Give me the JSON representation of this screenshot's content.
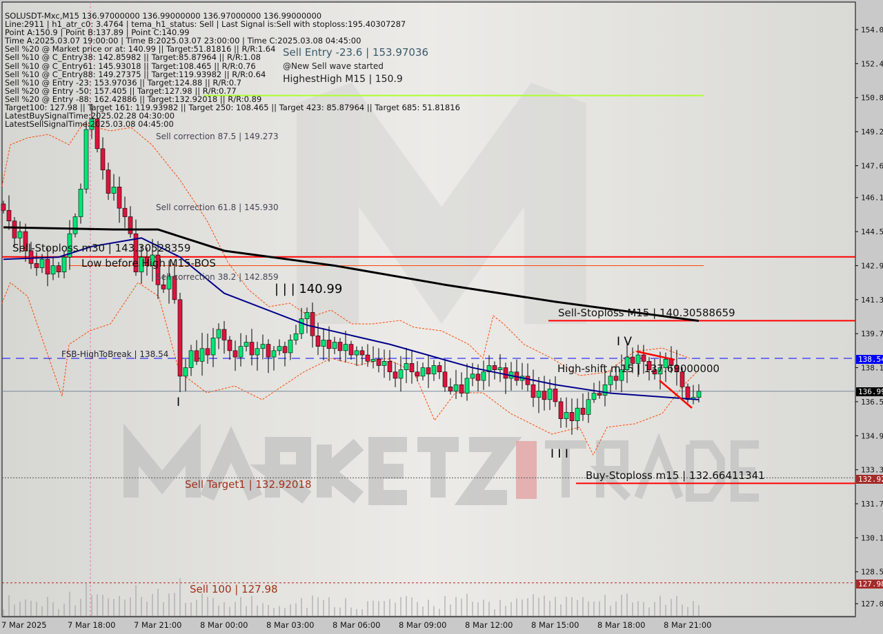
{
  "header": {
    "title_line": "SOLUSDT-Mxc,M15  136.97000000 136.99000000 136.97000000 136.99000000",
    "info_lines": [
      "Line:2911 | h1_atr_c0: 3.4764 | tema_h1_status: Sell | Last Signal is:Sell with stoploss:195.40307287",
      "Point A:150.9 | Point B:137.89 | Point C:140.99",
      "Time A:2025.03.07 19:00:00 | Time B:2025.03.07 23:00:00 | Time C:2025.03.08 04:45:00",
      "Sell %20 @ Market price or at: 140.99 || Target:51.81816 || R/R:1.64",
      "Sell %10 @ C_Entry38: 142.85982 || Target:85.87964 || R/R:1.08",
      "Sell %10 @ C_Entry61: 145.93018 || Target:108.465 || R/R:0.76",
      "Sell %10 @ C_Entry88: 149.27375 || Target:119.93982 || R/R:0.64",
      "Sell %10 @ Entry -23: 153.97036 || Target:124.88 || R/R:0.7",
      "Sell %20 @ Entry -50: 157.405 || Target:127.98 || R/R:0.77",
      "Sell %20 @ Entry -88: 162.42886 || Target:132.92018 || R/R:0.89",
      "Target100: 127.98 || Target 161: 119.93982 || Target 250: 108.465 || Target 423: 85.87964 || Target 685: 51.81816",
      "LatestBuySignalTime:2025.02.28 04:30:00",
      "LatestSellSignalTime:2025.03.08 04:45:00"
    ]
  },
  "annotations": {
    "sell_entry_23": "Sell Entry -23.6 | 153.97036",
    "new_sell_wave": "@New Sell wave started",
    "highest_high": "HighestHigh   M15 | 150.9",
    "sell_corr_875": "Sell correction 87.5 | 149.273",
    "sell_corr_618": "Sell correction 61.8 | 145.930",
    "sell_corr_382": "Sell correction 38.2 | 142.859",
    "sell_stoploss_m30": "Sell-Stoploss m30 | 143.30528359",
    "low_before_high": "Low before High   M15-BOS",
    "point_c": "| | | 140.99",
    "fsb_high": "FSB-HighToBreak | 138.54",
    "wave_i": "I",
    "wave_iii": "I I I",
    "wave_iv": "I V",
    "sell_stoploss_m15": "Sell-Stoploss M15 | 140.30588659",
    "high_shift": "High-shift m15 | 137.69000000",
    "buy_stoploss": "Buy-Stoploss m15 | 132.66411341",
    "sell_target1": "Sell Target1 | 132.92018",
    "sell_100": "Sell 100 | 127.98"
  },
  "watermark": "MARKETZ TRADE",
  "price_badges": [
    {
      "value": "138.54",
      "color": "#0000ff",
      "text_color": "#ffffff"
    },
    {
      "value": "136.99",
      "color": "#000000",
      "text_color": "#ffffff"
    },
    {
      "value": "132.92",
      "color": "#a52a2a",
      "text_color": "#ffffff"
    },
    {
      "value": "127.98",
      "color": "#a52a2a",
      "text_color": "#ffffff"
    }
  ],
  "chart_data": {
    "type": "candlestick",
    "symbol": "SOLUSDT-Mxc",
    "timeframe": "M15",
    "start_time": "2025.03.07 14:00",
    "ylim": [
      127.0,
      154.0
    ],
    "y_ticks": [
      "154.0",
      "152.4",
      "150.8",
      "149.2",
      "147.6",
      "146.1",
      "144.5",
      "142.9",
      "141.3",
      "139.7",
      "138.1",
      "136.5",
      "134.9",
      "133.3",
      "131.7",
      "130.1",
      "128.5",
      "127.0"
    ],
    "x_ticks": [
      "7 Mar 2025",
      "7 Mar 18:00",
      "7 Mar 21:00",
      "8 Mar 00:00",
      "8 Mar 03:00",
      "8 Mar 06:00",
      "8 Mar 09:00",
      "8 Mar 12:00",
      "8 Mar 15:00",
      "8 Mar 18:00",
      "8 Mar 21:00"
    ],
    "closes": [
      145.5,
      145.0,
      144.2,
      144.5,
      143.6,
      143.0,
      142.8,
      143.2,
      142.5,
      142.9,
      142.6,
      143.3,
      144.4,
      145.2,
      146.5,
      149.3,
      149.8,
      148.4,
      147.4,
      146.3,
      146.6,
      145.6,
      145.2,
      144.4,
      142.6,
      143.3,
      142.9,
      143.4,
      142.0,
      141.8,
      142.4,
      141.3,
      137.7,
      138.1,
      138.9,
      138.4,
      139.0,
      138.7,
      139.5,
      139.9,
      139.4,
      138.9,
      138.6,
      139.1,
      139.3,
      138.7,
      139.0,
      139.2,
      138.6,
      138.9,
      139.1,
      138.8,
      139.4,
      139.7,
      140.4,
      140.7,
      139.6,
      139.1,
      139.4,
      139.0,
      139.3,
      138.9,
      139.2,
      138.7,
      138.9,
      138.7,
      138.4,
      138.5,
      138.2,
      138.4,
      137.9,
      137.6,
      138.0,
      138.3,
      137.9,
      137.7,
      138.1,
      137.8,
      138.2,
      137.9,
      137.2,
      137.0,
      137.3,
      136.9,
      137.6,
      137.8,
      137.5,
      137.9,
      138.2,
      138.0,
      138.1,
      137.6,
      137.9,
      137.5,
      137.7,
      137.3,
      136.7,
      137.0,
      136.6,
      137.1,
      136.5,
      135.7,
      136.0,
      135.6,
      136.2,
      135.9,
      136.6,
      136.9,
      136.8,
      137.3,
      137.7,
      137.5,
      138.0,
      138.6,
      138.3,
      138.7,
      138.4,
      138.0,
      137.8,
      138.1,
      138.5,
      138.2,
      137.9,
      137.2,
      136.6,
      136.7,
      136.99
    ],
    "ma_slow": [
      [
        "2025.03.07 14:00",
        144.7
      ],
      [
        "2025.03.07 19:00",
        144.6
      ],
      [
        "2025.03.07 21:00",
        144.6
      ],
      [
        "2025.03.08 00:00",
        143.6
      ],
      [
        "2025.03.08 05:00",
        142.9
      ],
      [
        "2025.03.08 10:00",
        142.0
      ],
      [
        "2025.03.08 15:00",
        141.2
      ],
      [
        "2025.03.08 21:30",
        140.3
      ]
    ],
    "ma_fast": [
      [
        "2025.03.07 14:00",
        143.2
      ],
      [
        "2025.03.07 16:30",
        143.3
      ],
      [
        "2025.03.07 18:00",
        143.8
      ],
      [
        "2025.03.07 20:15",
        144.2
      ],
      [
        "2025.03.07 22:00",
        143.3
      ],
      [
        "2025.03.08 00:00",
        141.6
      ],
      [
        "2025.03.08 03:45",
        140.1
      ],
      [
        "2025.03.08 07:30",
        139.2
      ],
      [
        "2025.03.08 11:15",
        138.1
      ],
      [
        "2025.03.08 15:00",
        137.3
      ],
      [
        "2025.03.08 17:30",
        136.9
      ],
      [
        "2025.03.08 21:30",
        136.6
      ]
    ],
    "levels": [
      {
        "name": "highest-high",
        "price": 150.9,
        "color": "#adff2f"
      },
      {
        "name": "sell-stoploss-m30",
        "price": 143.31,
        "color": "#ff0000"
      },
      {
        "name": "low-before-high",
        "price": 142.9,
        "color": "#ff4500"
      },
      {
        "name": "sell-stoploss-m15",
        "price": 140.31,
        "color": "#ff0000"
      },
      {
        "name": "fsb-high",
        "price": 138.54,
        "color": "#0000ff"
      },
      {
        "name": "last-price",
        "price": 136.99,
        "color": "#778899"
      },
      {
        "name": "sell-target1",
        "price": 132.92,
        "color": "#555555"
      },
      {
        "name": "buy-stoploss-m15",
        "price": 132.66,
        "color": "#ff0000"
      },
      {
        "name": "sell-100",
        "price": 127.98,
        "color": "#b22222"
      }
    ],
    "colors": {
      "bull": "#00e676",
      "bear": "#dc143c",
      "ma_slow": "#000000",
      "ma_fast": "#00008b",
      "envelope": "#ff4500"
    }
  }
}
